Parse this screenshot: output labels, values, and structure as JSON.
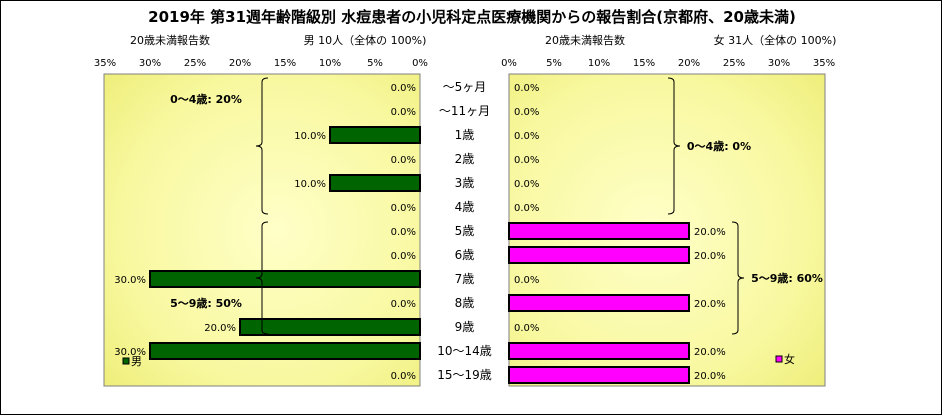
{
  "chart_data": {
    "type": "bar",
    "title": "2019年 第31週年齢階級別 水痘患者の小児科定点医療機関からの報告割合(京都府、20歳未満)",
    "categories": [
      "～5ヶ月",
      "～11ヶ月",
      "1歳",
      "2歳",
      "3歳",
      "4歳",
      "5歳",
      "6歳",
      "7歳",
      "8歳",
      "9歳",
      "10～14歳",
      "15～19歳"
    ],
    "xlim": [
      0,
      35
    ],
    "x_ticks": [
      "0%",
      "5%",
      "10%",
      "15%",
      "20%",
      "25%",
      "30%",
      "35%"
    ],
    "male": {
      "header_left": "20歳未満報告数",
      "header_right": "男  10人（全体の 100%)",
      "legend": "男",
      "color": "#006400",
      "values": [
        0,
        0,
        10,
        0,
        10,
        0,
        0,
        0,
        30,
        0,
        20,
        30,
        0
      ],
      "labels": [
        "0.0%",
        "0.0%",
        "10.0%",
        "0.0%",
        "10.0%",
        "0.0%",
        "0.0%",
        "0.0%",
        "30.0%",
        "0.0%",
        "20.0%",
        "30.0%",
        "0.0%"
      ],
      "groups": [
        {
          "label": "0～4歳: 20%",
          "from": 0,
          "to": 5
        },
        {
          "label": "5～9歳: 50%",
          "from": 6,
          "to": 10
        }
      ]
    },
    "female": {
      "header_left": "20歳未満報告数",
      "header_right": "女  31人（全体の 100%)",
      "legend": "女",
      "color": "#ff00ff",
      "values": [
        0,
        0,
        0,
        0,
        0,
        0,
        20,
        20,
        0,
        20,
        0,
        20,
        20
      ],
      "labels": [
        "0.0%",
        "0.0%",
        "0.0%",
        "0.0%",
        "0.0%",
        "0.0%",
        "20.0%",
        "20.0%",
        "0.0%",
        "20.0%",
        "0.0%",
        "20.0%",
        "20.0%"
      ],
      "groups": [
        {
          "label": "0～4歳: 0%",
          "from": 0,
          "to": 5
        },
        {
          "label": "5～9歳: 60%",
          "from": 6,
          "to": 10
        }
      ]
    }
  }
}
